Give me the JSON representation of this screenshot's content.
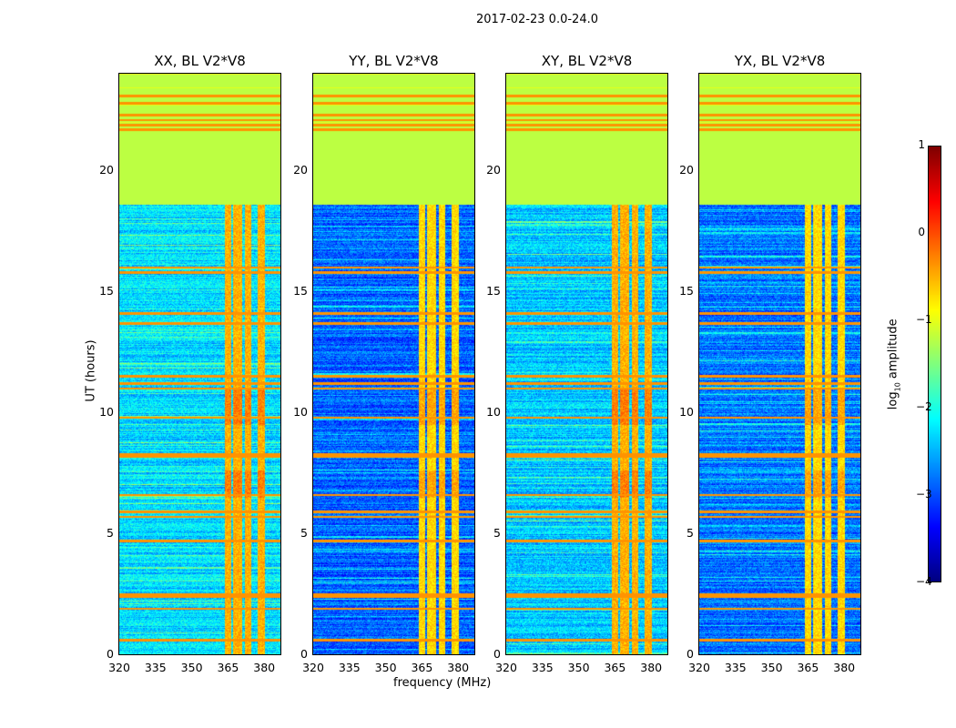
{
  "chart_data": {
    "type": "heatmap",
    "title": "2017-02-23 0.0-24.0",
    "xlabel": "frequency (MHz)",
    "ylabel": "UT (hours)",
    "xlim": [
      320,
      386.7
    ],
    "ylim": [
      0,
      24
    ],
    "xticks": [
      "320",
      "335",
      "350",
      "365",
      "380"
    ],
    "xtick_values": [
      320,
      335,
      350,
      365,
      380
    ],
    "yticks": [
      "0",
      "5",
      "10",
      "15",
      "20"
    ],
    "ytick_values": [
      0,
      5,
      10,
      15,
      20
    ],
    "panels": [
      {
        "title": "XX, BL V2*V8",
        "baseline": -2.3
      },
      {
        "title": "YY, BL V2*V8",
        "baseline": -2.9
      },
      {
        "title": "XY, BL V2*V8",
        "baseline": -2.4
      },
      {
        "title": "YX, BL V2*V8",
        "baseline": -2.8
      }
    ],
    "rfi_bands_mhz": [
      [
        363.5,
        366
      ],
      [
        367,
        370.5
      ],
      [
        372,
        374.5
      ],
      [
        377,
        380
      ]
    ],
    "rfi_level": -0.5,
    "flagged_hours": [
      18.6,
      24
    ],
    "flagged_level": -1.2,
    "orange_lines_hours": [
      0.6,
      1.9,
      2.4,
      2.5,
      4.7,
      5.7,
      5.9,
      6.6,
      8.2,
      8.3,
      9.8,
      11,
      11.2,
      11.5,
      13.7,
      14.1,
      15.8,
      16,
      21.7,
      21.9,
      22.1,
      22.3,
      22.8,
      23.1
    ],
    "colorbar": {
      "label": "log10 amplitude",
      "label_main": "log",
      "label_sub": "10",
      "label_rest": " amplitude",
      "range": [
        -4,
        1
      ],
      "ticks": [
        "1",
        "0",
        "−1",
        "−2",
        "−3",
        "−4"
      ],
      "tick_values": [
        1,
        0,
        -1,
        -2,
        -3,
        -4
      ]
    }
  }
}
